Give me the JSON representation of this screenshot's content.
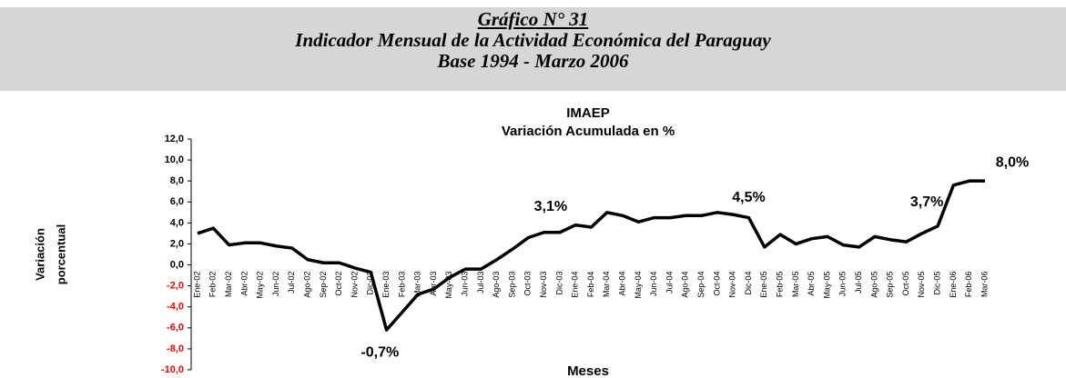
{
  "header": {
    "lines": [
      "Gráfico N° 31",
      "Indicador Mensual de la Actividad Económica del Paraguay",
      "Base 1994  - Marzo 2006"
    ]
  },
  "chart_data": {
    "type": "line",
    "title": "IMAEP",
    "subtitle": "Variación Acumulada en %",
    "y_label": [
      "Variación",
      "porcentual"
    ],
    "x_label": "Meses",
    "categories": [
      "Ene-02",
      "Feb-02",
      "Mar-02",
      "Abr-02",
      "May-02",
      "Jun-02",
      "Jul-02",
      "Ago-02",
      "Sep-02",
      "Oct-02",
      "Nov-02",
      "Dic-02",
      "Ene-03",
      "Feb-03",
      "Mar-03",
      "Abr-03",
      "May-03",
      "Jun-03",
      "Jul-03",
      "Ago-03",
      "Sep-03",
      "Oct-03",
      "Nov-03",
      "Dic-03",
      "Ene-04",
      "Feb-04",
      "Mar-04",
      "Abr-04",
      "May-04",
      "Jun-04",
      "Jul-04",
      "Ago-04",
      "Sep-04",
      "Oct-04",
      "Nov-04",
      "Dic-04",
      "Ene-05",
      "Feb-05",
      "Mar-05",
      "Abr-05",
      "May-05",
      "Jun-05",
      "Jul-05",
      "Ago-05",
      "Sep-05",
      "Oct-05",
      "Nov-05",
      "Dic-05",
      "Ene-06",
      "Feb-06",
      "Mar-06"
    ],
    "values": [
      3.0,
      3.5,
      1.9,
      2.1,
      2.1,
      1.8,
      1.6,
      0.5,
      0.2,
      0.2,
      -0.3,
      -0.7,
      -6.2,
      -4.5,
      -2.8,
      -2.3,
      -1.2,
      -0.4,
      -0.4,
      0.5,
      1.5,
      2.6,
      3.1,
      3.1,
      3.8,
      3.6,
      5.0,
      4.7,
      4.1,
      4.5,
      4.5,
      4.7,
      4.7,
      5.0,
      4.8,
      4.5,
      1.7,
      2.9,
      2.0,
      2.5,
      2.7,
      1.9,
      1.7,
      2.7,
      2.4,
      2.2,
      3.0,
      3.7,
      7.6,
      8.0,
      8.0
    ],
    "value_labels": [
      null,
      null,
      null,
      null,
      null,
      null,
      null,
      null,
      null,
      null,
      null,
      "-0,7%",
      null,
      null,
      null,
      null,
      null,
      null,
      null,
      null,
      null,
      null,
      null,
      "3,1%",
      null,
      null,
      null,
      null,
      null,
      null,
      null,
      null,
      null,
      null,
      null,
      "4,5%",
      null,
      null,
      null,
      null,
      null,
      null,
      null,
      null,
      null,
      null,
      null,
      "3,7%",
      null,
      null,
      "8,0%"
    ],
    "color": "#000000",
    "negative_tick_color": "#ff0000",
    "ylim": [
      -10,
      12
    ],
    "yticks": [
      {
        "value": -10,
        "label": "-10,0"
      },
      {
        "value": -8,
        "label": "-8,0"
      },
      {
        "value": -6,
        "label": "-6,0"
      },
      {
        "value": -4,
        "label": "-4,0"
      },
      {
        "value": -2,
        "label": "-2,0"
      },
      {
        "value": 0,
        "label": "0,0"
      },
      {
        "value": 2,
        "label": "2,0"
      },
      {
        "value": 4,
        "label": "4,0"
      },
      {
        "value": 6,
        "label": "6,0"
      },
      {
        "value": 8,
        "label": "8,0"
      },
      {
        "value": 10,
        "label": "10,0"
      },
      {
        "value": 12,
        "label": "12,0"
      }
    ],
    "grid": false
  }
}
